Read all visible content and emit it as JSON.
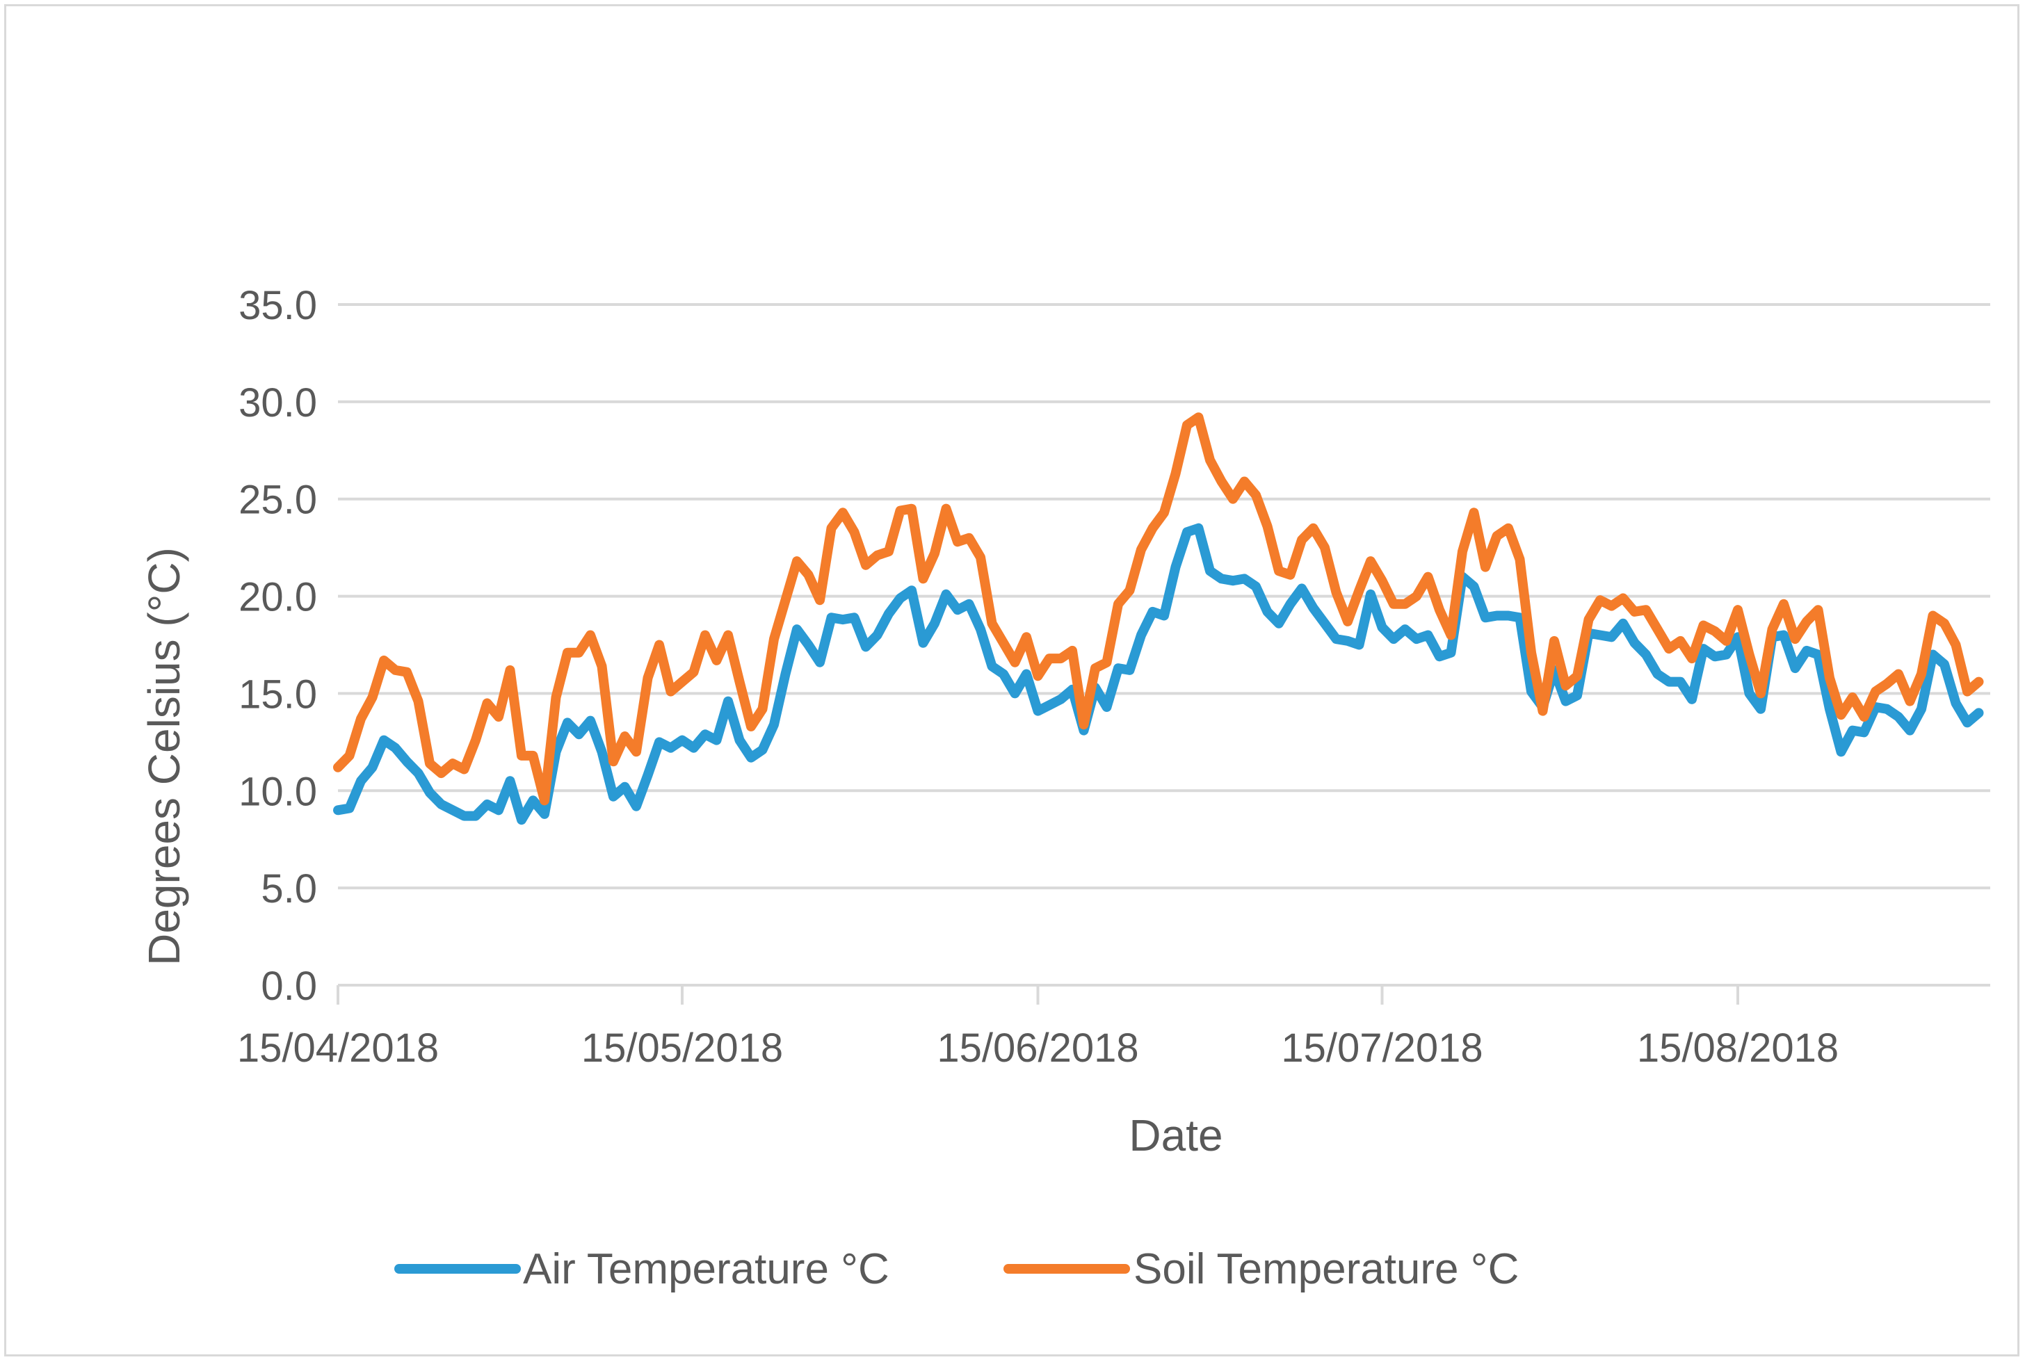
{
  "chart_data": {
    "type": "line",
    "title": "",
    "xlabel": "Date",
    "ylabel": "Degrees Celsius (°C)",
    "ylim": [
      0,
      35
    ],
    "yticks": [
      0,
      5,
      10,
      15,
      20,
      25,
      30,
      35
    ],
    "ytick_labels": [
      "0.0",
      "5.0",
      "10.0",
      "15.0",
      "20.0",
      "25.0",
      "30.0",
      "35.0"
    ],
    "grid": "horizontal",
    "x_start": "15/04/2018",
    "x_end": "1/09/2018",
    "xlim_days": [
      0,
      144
    ],
    "xticks": [
      {
        "label": "15/04/2018",
        "day": 0
      },
      {
        "label": "15/05/2018",
        "day": 30
      },
      {
        "label": "15/06/2018",
        "day": 61
      },
      {
        "label": "15/07/2018",
        "day": 91
      },
      {
        "label": "15/08/2018",
        "day": 122
      }
    ],
    "legend": "bottom",
    "series": [
      {
        "name": "Air Temperature °C",
        "color": "#2a9ad4",
        "values": [
          9.0,
          9.1,
          10.5,
          11.2,
          12.6,
          12.2,
          11.5,
          10.9,
          9.9,
          9.3,
          9.0,
          8.7,
          8.7,
          9.3,
          9.0,
          10.5,
          8.5,
          9.5,
          8.8,
          12.0,
          13.5,
          12.9,
          13.6,
          12.0,
          9.7,
          10.2,
          9.2,
          10.8,
          12.5,
          12.2,
          12.6,
          12.2,
          12.9,
          12.6,
          14.6,
          12.6,
          11.7,
          12.1,
          13.4,
          16.0,
          18.3,
          17.5,
          16.6,
          18.9,
          18.8,
          18.9,
          17.4,
          18.0,
          19.1,
          19.9,
          20.3,
          17.6,
          18.6,
          20.1,
          19.3,
          19.6,
          18.3,
          16.4,
          16.0,
          15.0,
          16.0,
          14.1,
          14.4,
          14.7,
          15.2,
          13.1,
          15.3,
          14.3,
          16.3,
          16.2,
          18.0,
          19.2,
          19.0,
          21.5,
          23.3,
          23.5,
          21.3,
          20.9,
          20.8,
          20.9,
          20.5,
          19.2,
          18.6,
          19.6,
          20.4,
          19.4,
          18.6,
          17.8,
          17.7,
          17.5,
          20.1,
          18.4,
          17.8,
          18.3,
          17.8,
          18.0,
          16.9,
          17.1,
          21.0,
          20.5,
          18.9,
          19.0,
          19.0,
          18.9,
          15.1,
          14.3,
          16.2,
          14.6,
          14.9,
          18.1,
          18.0,
          17.9,
          18.6,
          17.6,
          17.0,
          16.0,
          15.6,
          15.6,
          14.7,
          17.3,
          16.9,
          17.0,
          17.9,
          15.0,
          14.2,
          17.9,
          18.0,
          16.3,
          17.2,
          17.0,
          14.2,
          12.0,
          13.1,
          13.0,
          14.3,
          14.2,
          13.8,
          13.1,
          14.2,
          17.0,
          16.5,
          14.5,
          13.5,
          14.0
        ]
      },
      {
        "name": "Soil Temperature °C",
        "color": "#f47c2a",
        "values": [
          11.2,
          11.8,
          13.7,
          14.8,
          16.7,
          16.2,
          16.1,
          14.6,
          11.4,
          10.9,
          11.4,
          11.1,
          12.6,
          14.5,
          13.8,
          16.2,
          11.8,
          11.8,
          9.5,
          14.8,
          17.1,
          17.1,
          18.0,
          16.4,
          11.5,
          12.8,
          12.0,
          15.8,
          17.5,
          15.1,
          15.6,
          16.1,
          18.0,
          16.7,
          18.0,
          15.6,
          13.3,
          14.2,
          17.8,
          19.8,
          21.8,
          21.1,
          19.8,
          23.5,
          24.3,
          23.3,
          21.6,
          22.1,
          22.3,
          24.4,
          24.5,
          20.9,
          22.2,
          24.5,
          22.8,
          23.0,
          22.0,
          18.6,
          17.6,
          16.6,
          17.9,
          15.9,
          16.8,
          16.8,
          17.2,
          13.4,
          16.3,
          16.6,
          19.6,
          20.3,
          22.4,
          23.5,
          24.3,
          26.3,
          28.8,
          29.2,
          27.0,
          25.9,
          25.0,
          25.9,
          25.2,
          23.6,
          21.3,
          21.1,
          22.9,
          23.5,
          22.5,
          20.2,
          18.7,
          20.3,
          21.8,
          20.8,
          19.6,
          19.6,
          20.0,
          21.0,
          19.3,
          18.0,
          22.3,
          24.3,
          21.5,
          23.1,
          23.5,
          21.9,
          17.1,
          14.1,
          17.7,
          15.4,
          15.9,
          18.8,
          19.8,
          19.5,
          19.9,
          19.2,
          19.3,
          18.3,
          17.3,
          17.7,
          16.8,
          18.5,
          18.2,
          17.7,
          19.3,
          17.0,
          15.0,
          18.3,
          19.6,
          17.8,
          18.7,
          19.3,
          15.8,
          13.9,
          14.8,
          13.8,
          15.1,
          15.5,
          16.0,
          14.6,
          16.0,
          19.0,
          18.6,
          17.5,
          15.1,
          15.6
        ]
      }
    ]
  }
}
